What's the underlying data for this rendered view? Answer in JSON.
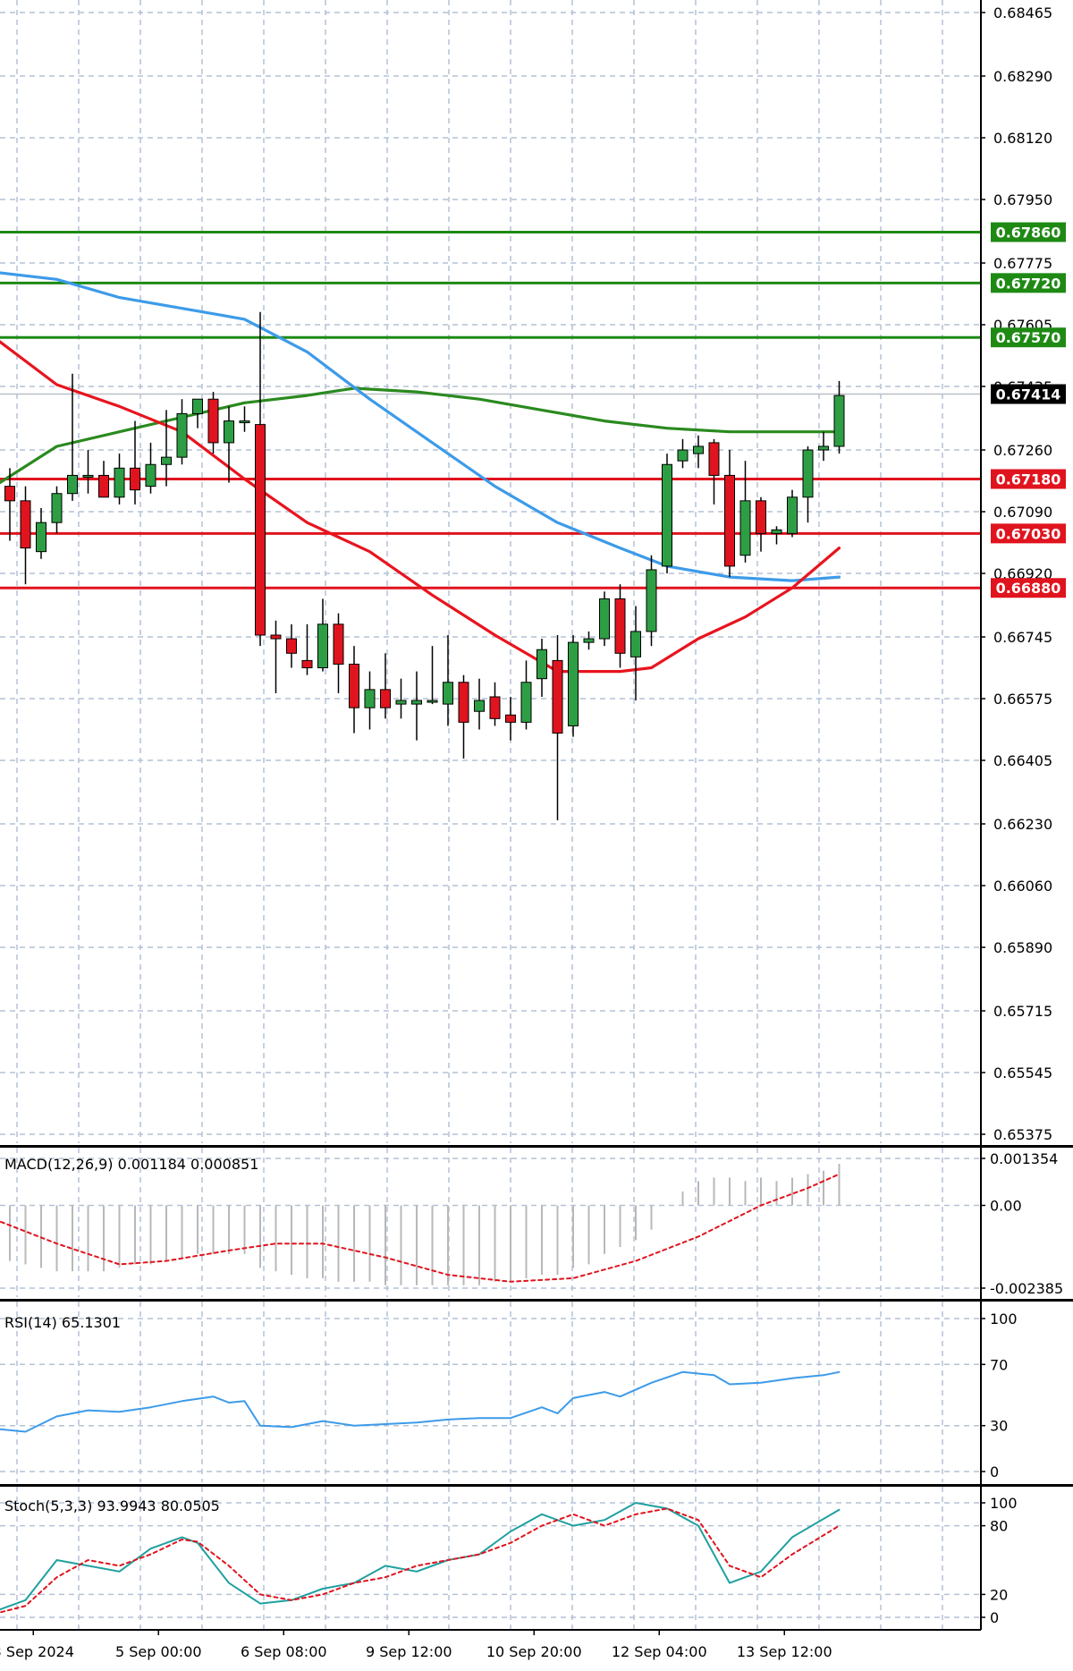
{
  "chart_data": {
    "type": "candlestick",
    "symbol_colors": {
      "bull": "#2e9e45",
      "bear": "#e0141e",
      "ma_fast": "#e8141e",
      "ma_slow": "#3d9be9",
      "ma_long": "#2a8a1f",
      "level_support": "#e0141e",
      "level_resistance": "#1e8a14"
    },
    "price_axis": {
      "ticks": [
        "0.68465",
        "0.68290",
        "0.68120",
        "0.67950",
        "0.67775",
        "0.67605",
        "0.67435",
        "0.67260",
        "0.67090",
        "0.66920",
        "0.66745",
        "0.66575",
        "0.66405",
        "0.66230",
        "0.66060",
        "0.65890",
        "0.65715",
        "0.65545",
        "0.65375"
      ],
      "tick_values": [
        0.68465,
        0.6829,
        0.6812,
        0.6795,
        0.67775,
        0.67605,
        0.67435,
        0.6726,
        0.6709,
        0.6692,
        0.66745,
        0.66575,
        0.66405,
        0.6623,
        0.6606,
        0.6589,
        0.65715,
        0.65545,
        0.65375
      ],
      "range": [
        0.65375,
        0.68465
      ]
    },
    "levels": [
      {
        "label": "0.67860",
        "value": 0.6786,
        "kind": "resistance"
      },
      {
        "label": "0.67720",
        "value": 0.6772,
        "kind": "resistance"
      },
      {
        "label": "0.67570",
        "value": 0.6757,
        "kind": "resistance"
      },
      {
        "label": "0.67180",
        "value": 0.6718,
        "kind": "support"
      },
      {
        "label": "0.67030",
        "value": 0.6703,
        "kind": "support"
      },
      {
        "label": "0.66880",
        "value": 0.6688,
        "kind": "support"
      }
    ],
    "current_price": {
      "label": "0.67414",
      "value": 0.67414
    },
    "x_labels": [
      "3 Sep 2024",
      "5 Sep 00:00",
      "6 Sep 08:00",
      "9 Sep 12:00",
      "10 Sep 20:00",
      "12 Sep 04:00",
      "13 Sep 12:00"
    ],
    "x_label_index": [
      1.5,
      9.5,
      17.5,
      25.5,
      33.5,
      41.5,
      49.5
    ],
    "candles": [
      {
        "o": 0.6716,
        "h": 0.6721,
        "l": 0.6701,
        "c": 0.6712
      },
      {
        "o": 0.6712,
        "h": 0.6716,
        "l": 0.6689,
        "c": 0.6699
      },
      {
        "o": 0.6698,
        "h": 0.671,
        "l": 0.6696,
        "c": 0.6706
      },
      {
        "o": 0.6706,
        "h": 0.6716,
        "l": 0.6703,
        "c": 0.6714
      },
      {
        "o": 0.6714,
        "h": 0.6747,
        "l": 0.6712,
        "c": 0.6719
      },
      {
        "o": 0.6719,
        "h": 0.6726,
        "l": 0.6714,
        "c": 0.6719
      },
      {
        "o": 0.6719,
        "h": 0.6723,
        "l": 0.6713,
        "c": 0.6713
      },
      {
        "o": 0.6713,
        "h": 0.6725,
        "l": 0.6711,
        "c": 0.6721
      },
      {
        "o": 0.6721,
        "h": 0.6734,
        "l": 0.6711,
        "c": 0.6715
      },
      {
        "o": 0.6716,
        "h": 0.6728,
        "l": 0.6714,
        "c": 0.6722
      },
      {
        "o": 0.6722,
        "h": 0.6737,
        "l": 0.6716,
        "c": 0.6724
      },
      {
        "o": 0.6724,
        "h": 0.674,
        "l": 0.6722,
        "c": 0.6736
      },
      {
        "o": 0.6736,
        "h": 0.674,
        "l": 0.6732,
        "c": 0.674
      },
      {
        "o": 0.674,
        "h": 0.6742,
        "l": 0.6725,
        "c": 0.6728
      },
      {
        "o": 0.6728,
        "h": 0.6738,
        "l": 0.6717,
        "c": 0.6734
      },
      {
        "o": 0.6734,
        "h": 0.6738,
        "l": 0.6731,
        "c": 0.6734
      },
      {
        "o": 0.6733,
        "h": 0.6764,
        "l": 0.6672,
        "c": 0.6675
      },
      {
        "o": 0.6675,
        "h": 0.6679,
        "l": 0.6659,
        "c": 0.6674
      },
      {
        "o": 0.6674,
        "h": 0.6678,
        "l": 0.6666,
        "c": 0.667
      },
      {
        "o": 0.6668,
        "h": 0.6678,
        "l": 0.6664,
        "c": 0.6666
      },
      {
        "o": 0.6666,
        "h": 0.6685,
        "l": 0.6665,
        "c": 0.6678
      },
      {
        "o": 0.6678,
        "h": 0.6681,
        "l": 0.6659,
        "c": 0.6667
      },
      {
        "o": 0.6667,
        "h": 0.6672,
        "l": 0.6648,
        "c": 0.6655
      },
      {
        "o": 0.6655,
        "h": 0.6665,
        "l": 0.6649,
        "c": 0.666
      },
      {
        "o": 0.666,
        "h": 0.667,
        "l": 0.6652,
        "c": 0.6655
      },
      {
        "o": 0.6656,
        "h": 0.6663,
        "l": 0.6652,
        "c": 0.6657
      },
      {
        "o": 0.6656,
        "h": 0.6665,
        "l": 0.6646,
        "c": 0.6657
      },
      {
        "o": 0.6657,
        "h": 0.6672,
        "l": 0.6656,
        "c": 0.6657
      },
      {
        "o": 0.6656,
        "h": 0.6675,
        "l": 0.665,
        "c": 0.6662
      },
      {
        "o": 0.6662,
        "h": 0.6664,
        "l": 0.6641,
        "c": 0.6651
      },
      {
        "o": 0.6654,
        "h": 0.6663,
        "l": 0.6649,
        "c": 0.6657
      },
      {
        "o": 0.6658,
        "h": 0.6662,
        "l": 0.665,
        "c": 0.6652
      },
      {
        "o": 0.6653,
        "h": 0.6658,
        "l": 0.6646,
        "c": 0.6651
      },
      {
        "o": 0.6651,
        "h": 0.6668,
        "l": 0.6649,
        "c": 0.6662
      },
      {
        "o": 0.6663,
        "h": 0.6674,
        "l": 0.6658,
        "c": 0.6671
      },
      {
        "o": 0.6668,
        "h": 0.6675,
        "l": 0.6624,
        "c": 0.6648
      },
      {
        "o": 0.665,
        "h": 0.6675,
        "l": 0.6647,
        "c": 0.6673
      },
      {
        "o": 0.6673,
        "h": 0.6676,
        "l": 0.6671,
        "c": 0.6674
      },
      {
        "o": 0.6674,
        "h": 0.6687,
        "l": 0.6672,
        "c": 0.6685
      },
      {
        "o": 0.6685,
        "h": 0.6689,
        "l": 0.6666,
        "c": 0.667
      },
      {
        "o": 0.6669,
        "h": 0.6683,
        "l": 0.6657,
        "c": 0.6676
      },
      {
        "o": 0.6676,
        "h": 0.6697,
        "l": 0.6672,
        "c": 0.6693
      },
      {
        "o": 0.6694,
        "h": 0.6725,
        "l": 0.6692,
        "c": 0.6722
      },
      {
        "o": 0.6723,
        "h": 0.6729,
        "l": 0.6721,
        "c": 0.6726
      },
      {
        "o": 0.6725,
        "h": 0.673,
        "l": 0.6721,
        "c": 0.6727
      },
      {
        "o": 0.6728,
        "h": 0.6729,
        "l": 0.6711,
        "c": 0.6719
      },
      {
        "o": 0.6719,
        "h": 0.6726,
        "l": 0.6691,
        "c": 0.6694
      },
      {
        "o": 0.6697,
        "h": 0.6723,
        "l": 0.6695,
        "c": 0.6712
      },
      {
        "o": 0.6712,
        "h": 0.6713,
        "l": 0.6698,
        "c": 0.6703
      },
      {
        "o": 0.6703,
        "h": 0.6705,
        "l": 0.67,
        "c": 0.6704
      },
      {
        "o": 0.6703,
        "h": 0.6715,
        "l": 0.6702,
        "c": 0.6713
      },
      {
        "o": 0.6713,
        "h": 0.6727,
        "l": 0.6706,
        "c": 0.6726
      },
      {
        "o": 0.6726,
        "h": 0.6731,
        "l": 0.6723,
        "c": 0.6727
      },
      {
        "o": 0.6727,
        "h": 0.6745,
        "l": 0.6725,
        "c": 0.6741
      }
    ],
    "ma_fast": [
      [
        -1,
        0.6757
      ],
      [
        3,
        0.6744
      ],
      [
        7,
        0.6738
      ],
      [
        11,
        0.6731
      ],
      [
        15,
        0.6718
      ],
      [
        19,
        0.6706
      ],
      [
        23,
        0.6698
      ],
      [
        27,
        0.6686
      ],
      [
        31,
        0.6675
      ],
      [
        35,
        0.6665
      ],
      [
        37,
        0.6665
      ],
      [
        39,
        0.6665
      ],
      [
        41,
        0.6666
      ],
      [
        44,
        0.6674
      ],
      [
        47,
        0.668
      ],
      [
        50,
        0.6688
      ],
      [
        53,
        0.6699
      ]
    ],
    "ma_slow": [
      [
        -1,
        0.6775
      ],
      [
        3,
        0.6773
      ],
      [
        7,
        0.6768
      ],
      [
        11,
        0.6765
      ],
      [
        15,
        0.6762
      ],
      [
        19,
        0.6753
      ],
      [
        23,
        0.674
      ],
      [
        27,
        0.6728
      ],
      [
        31,
        0.6716
      ],
      [
        35,
        0.6706
      ],
      [
        39,
        0.6699
      ],
      [
        42,
        0.6694
      ],
      [
        46,
        0.6691
      ],
      [
        50,
        0.669
      ],
      [
        53,
        0.6691
      ]
    ],
    "ma_long": [
      [
        -1,
        0.6716
      ],
      [
        3,
        0.6727
      ],
      [
        7,
        0.6731
      ],
      [
        11,
        0.6735
      ],
      [
        15,
        0.6739
      ],
      [
        19,
        0.6741
      ],
      [
        22,
        0.6743
      ],
      [
        26,
        0.6742
      ],
      [
        30,
        0.674
      ],
      [
        34,
        0.6737
      ],
      [
        38,
        0.6734
      ],
      [
        42,
        0.6732
      ],
      [
        46,
        0.6731
      ],
      [
        50,
        0.6731
      ],
      [
        53,
        0.6731
      ]
    ],
    "macd": {
      "title": "MACD(12,26,9) 0.001184 0.000851",
      "axis_labels": [
        "0.001354",
        "0.00",
        "-0.002385"
      ],
      "axis_values": [
        0.001354,
        0,
        -0.002385
      ],
      "hist": [
        -0.0016,
        -0.0017,
        -0.0018,
        -0.0019,
        -0.0019,
        -0.0019,
        -0.0019,
        -0.0018,
        -0.0017,
        -0.0017,
        -0.0016,
        -0.0015,
        -0.0014,
        -0.0014,
        -0.0014,
        -0.0014,
        -0.0018,
        -0.0019,
        -0.002,
        -0.0021,
        -0.0021,
        -0.0022,
        -0.0022,
        -0.0022,
        -0.0023,
        -0.0023,
        -0.0023,
        -0.0023,
        -0.0023,
        -0.0023,
        -0.0023,
        -0.0022,
        -0.0022,
        -0.0021,
        -0.002,
        -0.002,
        -0.0018,
        -0.0017,
        -0.0014,
        -0.0012,
        -0.001,
        -0.0007,
        0.0,
        0.0004,
        0.0007,
        0.0008,
        0.0008,
        0.0007,
        0.0008,
        0.0007,
        0.0008,
        0.0009,
        0.001,
        0.0012
      ],
      "signal": [
        [
          -1,
          -0.0004
        ],
        [
          3,
          -0.0011
        ],
        [
          7,
          -0.0017
        ],
        [
          10,
          -0.0016
        ],
        [
          14,
          -0.0013
        ],
        [
          17,
          -0.0011
        ],
        [
          20,
          -0.0011
        ],
        [
          24,
          -0.0015
        ],
        [
          28,
          -0.002
        ],
        [
          32,
          -0.0022
        ],
        [
          36,
          -0.0021
        ],
        [
          40,
          -0.0016
        ],
        [
          44,
          -0.0009
        ],
        [
          48,
          0.0
        ],
        [
          51,
          0.0005
        ],
        [
          53,
          0.0009
        ]
      ]
    },
    "rsi": {
      "title": "RSI(14) 65.1301",
      "axis_labels": [
        "100",
        "70",
        "30",
        "0"
      ],
      "axis_values": [
        100,
        70,
        30,
        0
      ],
      "values": [
        [
          -1,
          28
        ],
        [
          1,
          26
        ],
        [
          3,
          36
        ],
        [
          5,
          40
        ],
        [
          7,
          39
        ],
        [
          9,
          42
        ],
        [
          11,
          46
        ],
        [
          13,
          49
        ],
        [
          14,
          45
        ],
        [
          15,
          46
        ],
        [
          16,
          30
        ],
        [
          18,
          29
        ],
        [
          20,
          33
        ],
        [
          22,
          30
        ],
        [
          24,
          31
        ],
        [
          26,
          32
        ],
        [
          28,
          34
        ],
        [
          30,
          35
        ],
        [
          32,
          35
        ],
        [
          34,
          42
        ],
        [
          35,
          38
        ],
        [
          36,
          48
        ],
        [
          38,
          52
        ],
        [
          39,
          49
        ],
        [
          41,
          58
        ],
        [
          43,
          65
        ],
        [
          45,
          63
        ],
        [
          46,
          57
        ],
        [
          48,
          58
        ],
        [
          50,
          61
        ],
        [
          52,
          63
        ],
        [
          53,
          65
        ]
      ]
    },
    "stoch": {
      "title": "Stoch(5,3,3) 93.9943 80.0505",
      "axis_labels": [
        "100",
        "80",
        "20",
        "0"
      ],
      "axis_values": [
        100,
        80,
        20,
        0
      ],
      "k": [
        [
          -1,
          5
        ],
        [
          1,
          15
        ],
        [
          3,
          50
        ],
        [
          5,
          45
        ],
        [
          7,
          40
        ],
        [
          9,
          60
        ],
        [
          11,
          70
        ],
        [
          12,
          65
        ],
        [
          14,
          30
        ],
        [
          16,
          12
        ],
        [
          18,
          15
        ],
        [
          20,
          25
        ],
        [
          22,
          30
        ],
        [
          24,
          45
        ],
        [
          26,
          40
        ],
        [
          28,
          50
        ],
        [
          30,
          55
        ],
        [
          32,
          75
        ],
        [
          34,
          90
        ],
        [
          36,
          80
        ],
        [
          38,
          85
        ],
        [
          40,
          100
        ],
        [
          42,
          95
        ],
        [
          44,
          80
        ],
        [
          46,
          30
        ],
        [
          48,
          40
        ],
        [
          50,
          70
        ],
        [
          53,
          94
        ]
      ],
      "d": [
        [
          -1,
          3
        ],
        [
          1,
          10
        ],
        [
          3,
          35
        ],
        [
          5,
          50
        ],
        [
          7,
          45
        ],
        [
          9,
          55
        ],
        [
          11,
          68
        ],
        [
          12,
          66
        ],
        [
          14,
          45
        ],
        [
          16,
          20
        ],
        [
          18,
          15
        ],
        [
          20,
          20
        ],
        [
          22,
          30
        ],
        [
          24,
          35
        ],
        [
          26,
          45
        ],
        [
          28,
          50
        ],
        [
          30,
          55
        ],
        [
          32,
          65
        ],
        [
          34,
          80
        ],
        [
          36,
          90
        ],
        [
          38,
          80
        ],
        [
          40,
          90
        ],
        [
          42,
          95
        ],
        [
          44,
          85
        ],
        [
          46,
          45
        ],
        [
          48,
          35
        ],
        [
          50,
          55
        ],
        [
          53,
          80
        ]
      ]
    }
  }
}
